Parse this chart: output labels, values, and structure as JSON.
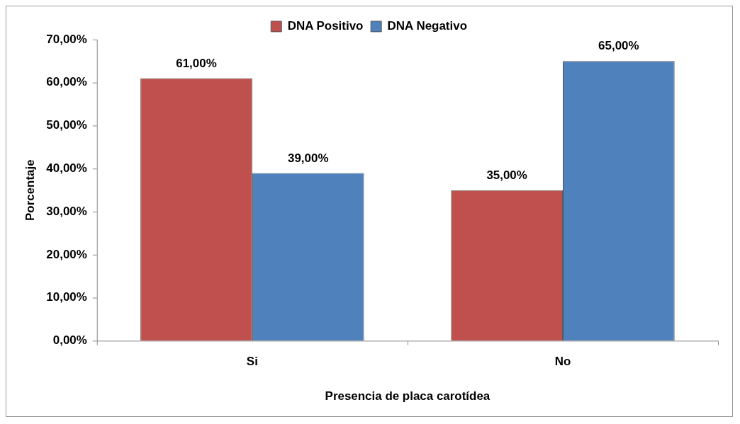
{
  "chart_data": {
    "type": "bar",
    "xlabel": "Presencia de placa carotídea",
    "ylabel": "Porcentaje",
    "categories": [
      "Si",
      "No"
    ],
    "series": [
      {
        "name": "DNA Positivo",
        "color": "#c0504d",
        "values": [
          61,
          35
        ],
        "value_labels": [
          "61,00%",
          "35,00%"
        ]
      },
      {
        "name": "DNA Negativo",
        "color": "#4f81bd",
        "values": [
          39,
          65
        ],
        "value_labels": [
          "39,00%",
          "65,00%"
        ]
      }
    ],
    "ylim": [
      0,
      70
    ],
    "yticks": [
      {
        "value": 0,
        "label": "0,00%"
      },
      {
        "value": 10,
        "label": "10,00%"
      },
      {
        "value": 20,
        "label": "20,00%"
      },
      {
        "value": 30,
        "label": "30,00%"
      },
      {
        "value": 40,
        "label": "40,00%"
      },
      {
        "value": 50,
        "label": "50,00%"
      },
      {
        "value": 60,
        "label": "60,00%"
      },
      {
        "value": 70,
        "label": "70,00%"
      }
    ],
    "grid": false,
    "legend": "top"
  }
}
